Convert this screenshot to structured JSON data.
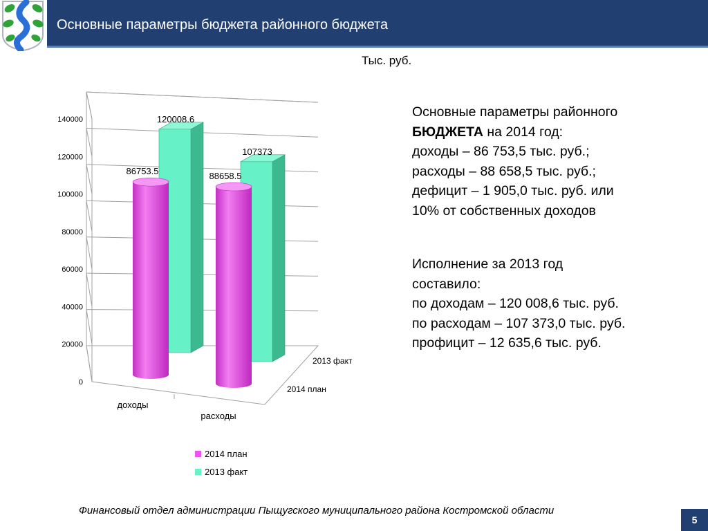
{
  "header": {
    "title": "Основные параметры бюджета районного бюджета"
  },
  "units_label": "Тыс. руб.",
  "colors": {
    "header_bg": "#213f70",
    "plan": "#ee55ee",
    "fact": "#66f2c6"
  },
  "logo": {
    "icon": "coat-of-arms-icon"
  },
  "chart_data": {
    "type": "bar",
    "categories": [
      "доходы",
      "расходы"
    ],
    "series": [
      {
        "name": "2014 план",
        "values": [
          86753.5,
          88658.5
        ],
        "labels": [
          "86753.5",
          "88658.5"
        ],
        "color": "#ee55ee"
      },
      {
        "name": "2013 факт",
        "values": [
          120008.6,
          107373
        ],
        "labels": [
          "120008.6",
          "107373"
        ],
        "color": "#66f2c6"
      }
    ],
    "y_ticks": [
      "0",
      "20000",
      "40000",
      "60000",
      "80000",
      "100000",
      "120000",
      "140000"
    ],
    "ylim": [
      0,
      140000
    ],
    "depth_labels": [
      "2014 план",
      "2013 факт"
    ],
    "legend": [
      "2014 план",
      "2013 факт"
    ],
    "legend_position": "bottom",
    "grid": true
  },
  "params_block": {
    "line1": "Основные параметры районного",
    "line2_bold": "БЮДЖЕТА",
    "line2_rest": " на 2014 год:",
    "line3": "доходы – 86 753,5 тыс. руб.;",
    "line4": "расходы – 88 658,5 тыс. руб.;",
    "line5": "дефицит – 1 905,0 тыс. руб. или",
    "line6": "10% от собственных доходов"
  },
  "execution_block": {
    "line1": "Исполнение за  2013 год",
    "line2": "составило:",
    "line3": "по доходам – 120 008,6 тыс. руб.",
    "line4": "по расходам – 107 373,0 тыс. руб.",
    "line5": "профицит – 12 635,6 тыс. руб."
  },
  "footer": {
    "text": "Финансовый отдел  администрации Пыщугского муниципального района  Костромской области"
  },
  "page_number": "5"
}
